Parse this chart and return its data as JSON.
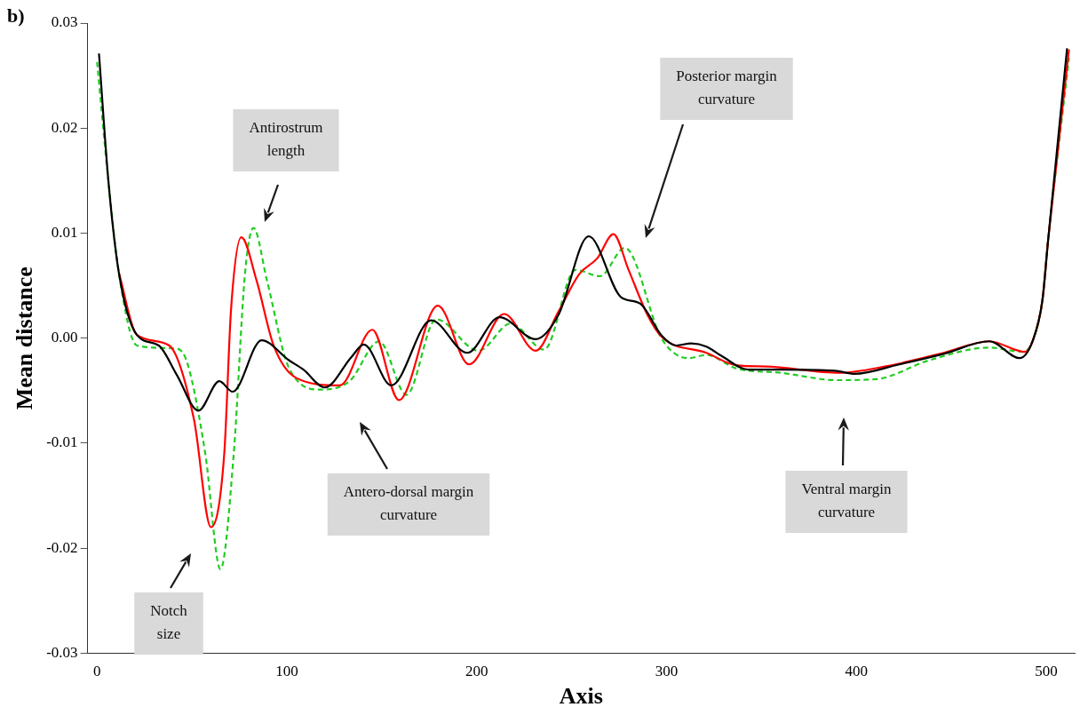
{
  "chart_data": {
    "type": "line",
    "title": "b)",
    "xlabel": "Axis",
    "ylabel": "Mean distance",
    "xlim": [
      -5,
      515
    ],
    "xticks": [
      0,
      100,
      200,
      300,
      400,
      500
    ],
    "ylim": [
      -0.03,
      0.03
    ],
    "yticks": [
      -0.03,
      -0.02,
      -0.01,
      {
        "value": 0,
        "label": "0.00"
      },
      0.01,
      0.02,
      0.03
    ],
    "grid": false,
    "legend": false,
    "marker": "none",
    "series": [
      {
        "color": "#000000",
        "line_style": "solid",
        "x": [
          1,
          6,
          11.5,
          21,
          32.5,
          42,
          53.4,
          64.4,
          71.4,
          86.7,
          101,
          108.7,
          120,
          134,
          140.5,
          155,
          176,
          195,
          212,
          231,
          243,
          259,
          276,
          286,
          297.6,
          305,
          313,
          321,
          329,
          343,
          360,
          388.5,
          399,
          422.6,
          446,
          470,
          486,
          493,
          498,
          501,
          511
        ],
        "values": [
          0.0271,
          0.0149,
          0.0062,
          0.0003,
          -0.0007,
          -0.0035,
          -0.0069,
          -0.0041,
          -0.0051,
          -0.0002,
          -0.0021,
          -0.003,
          -0.0047,
          -0.0018,
          -0.0006,
          -0.0045,
          0.0017,
          -0.0014,
          0.002,
          -0.0001,
          0.0022,
          0.0097,
          0.0039,
          0.0033,
          0.0002,
          -0.0007,
          -0.0005,
          -0.0008,
          -0.0017,
          -0.003,
          -0.003,
          -0.0031,
          -0.0034,
          -0.0025,
          -0.0015,
          -0.0003,
          -0.0019,
          -0.0002,
          0.0036,
          0.0093,
          0.0276
        ]
      },
      {
        "color": "#ff0000",
        "line_style": "solid",
        "x": [
          11.5,
          21,
          38,
          51,
          60,
          67,
          70.6,
          76,
          84,
          93,
          105,
          128,
          145,
          159,
          179.5,
          196,
          214.5,
          231,
          243,
          254,
          263.5,
          272,
          280,
          290,
          297.6,
          321,
          337,
          352,
          391,
          415,
          446,
          470,
          489,
          493,
          498,
          501,
          512
        ],
        "values": [
          0.0062,
          0.0003,
          -0.0007,
          -0.0077,
          -0.018,
          -0.011,
          0.0028,
          0.0096,
          0.0055,
          -0.0007,
          -0.0038,
          -0.0045,
          0.0008,
          -0.0059,
          0.0031,
          -0.0025,
          0.0023,
          -0.0012,
          0.0025,
          0.0061,
          0.0076,
          0.0099,
          0.0065,
          0.0022,
          0.0001,
          -0.0014,
          -0.0026,
          -0.0027,
          -0.0033,
          -0.0027,
          -0.0014,
          -0.0003,
          -0.0013,
          -0.0002,
          0.0036,
          0.0093,
          0.0275
        ]
      },
      {
        "color": "#22cc22",
        "line_style": "dashed",
        "x": [
          0,
          6,
          11.5,
          21,
          42,
          47.6,
          57,
          65,
          72,
          78,
          82.4,
          89.5,
          101,
          118,
          133,
          148.6,
          163,
          178.6,
          201,
          218,
          235.5,
          252,
          265,
          278,
          297.6,
          311.5,
          321,
          337,
          360,
          390,
          410.6,
          438.5,
          470,
          488,
          493,
          498,
          501,
          512
        ],
        "values": [
          0.0263,
          0.0149,
          0.0062,
          -0.0007,
          -0.001,
          -0.0024,
          -0.011,
          -0.022,
          -0.011,
          0.0063,
          0.0105,
          0.0055,
          -0.0028,
          -0.0049,
          -0.0041,
          -0.0003,
          -0.0054,
          0.0018,
          -0.0012,
          0.0014,
          -0.0011,
          0.0065,
          0.0059,
          0.0086,
          -0.0001,
          -0.0019,
          -0.0016,
          -0.0029,
          -0.0033,
          -0.004,
          -0.0039,
          -0.0021,
          -0.0009,
          -0.0013,
          -0.0002,
          0.0036,
          0.0093,
          0.0267
        ]
      }
    ],
    "annotations": [
      "Antirostrum\nlength",
      "Posterior margin\ncurvature",
      "Antero-dorsal margin\ncurvature",
      "Ventral margin\ncurvature",
      "Notch\nsize"
    ]
  }
}
